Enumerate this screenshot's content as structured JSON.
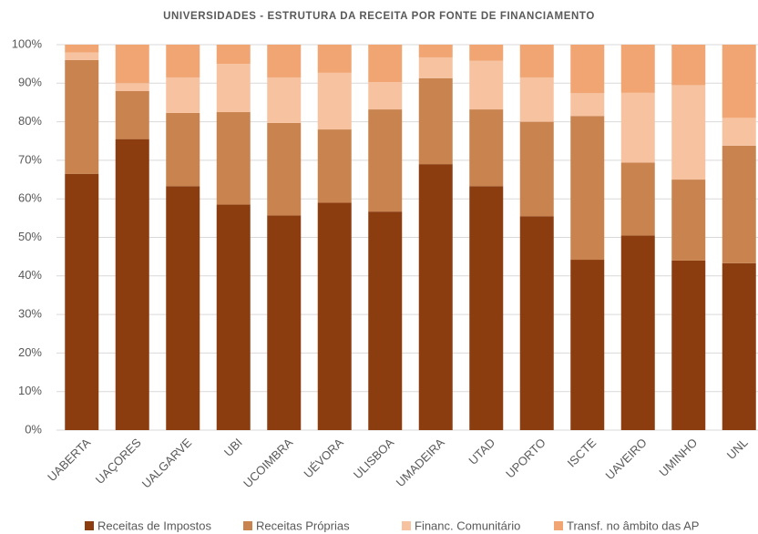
{
  "chart_data": {
    "type": "stacked_bar",
    "title": "UNIVERSIDADES - ESTRUTURA DA RECEITA POR FONTE DE FINANCIAMENTO",
    "categories": [
      "UABERTA",
      "UAÇORES",
      "UALGARVE",
      "UBI",
      "UCOIMBRA",
      "UÉVORA",
      "ULISBOA",
      "UMADEIRA",
      "UTAD",
      "UPORTO",
      "ISCTE",
      "UAVEIRO",
      "UMINHO",
      "UNL"
    ],
    "series": [
      {
        "name": "Receitas de Impostos",
        "color": "#8c3d10",
        "values": [
          66.5,
          75.5,
          63.3,
          58.5,
          55.7,
          59,
          56.7,
          69,
          63.3,
          55.5,
          44.2,
          50.5,
          44,
          43.3
        ]
      },
      {
        "name": "Receitas Próprias",
        "color": "#c9834f",
        "values": [
          29.5,
          12.5,
          19,
          24,
          24,
          19,
          26.5,
          22.3,
          19.9,
          24.5,
          37.3,
          18.9,
          21,
          30.5
        ]
      },
      {
        "name": "Financ. Comunitário",
        "color": "#f6c2a0",
        "values": [
          2,
          2,
          9.2,
          12.5,
          11.8,
          14.7,
          7.1,
          5.4,
          12.6,
          11.5,
          5.9,
          18.1,
          24.5,
          7.2
        ]
      },
      {
        "name": "Transf. no âmbito das AP",
        "color": "#f0a573",
        "values": [
          2,
          10,
          8.5,
          5,
          8.5,
          7.3,
          9.7,
          3.3,
          4.2,
          8.5,
          12.6,
          12.5,
          10.5,
          19
        ]
      }
    ],
    "ylim": [
      0,
      100
    ],
    "yticks": [
      {
        "value": 0,
        "label": "0%"
      },
      {
        "value": 10,
        "label": "10%"
      },
      {
        "value": 20,
        "label": "20%"
      },
      {
        "value": 30,
        "label": "30%"
      },
      {
        "value": 40,
        "label": "40%"
      },
      {
        "value": 50,
        "label": "50%"
      },
      {
        "value": 60,
        "label": "60%"
      },
      {
        "value": 70,
        "label": "70%"
      },
      {
        "value": 80,
        "label": "80%"
      },
      {
        "value": 90,
        "label": "90%"
      },
      {
        "value": 100,
        "label": "100%"
      }
    ],
    "grid": true,
    "legend": "bottom"
  }
}
